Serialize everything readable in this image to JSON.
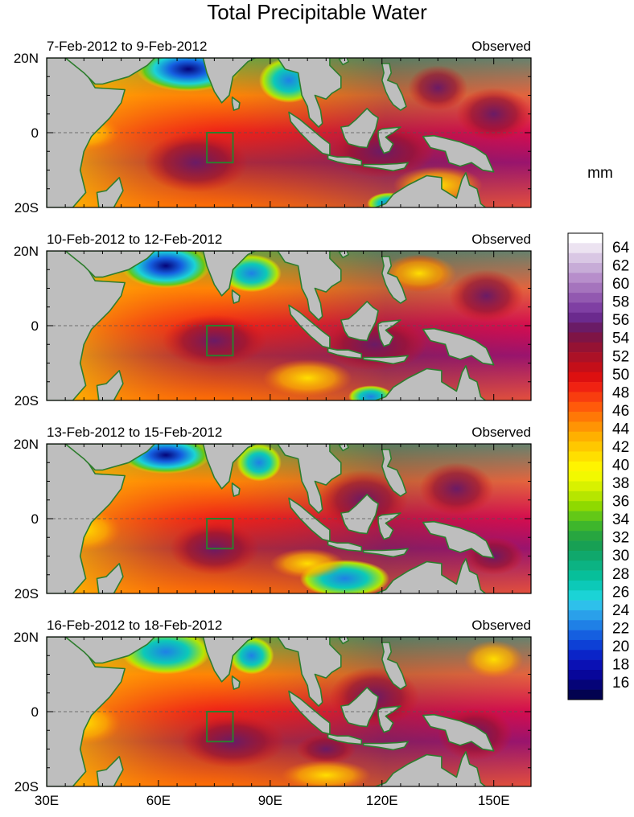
{
  "title": "Total Precipitable Water",
  "panels": [
    {
      "date_range": "7-Feb-2012 to 9-Feb-2012",
      "source": "Observed"
    },
    {
      "date_range": "10-Feb-2012 to 12-Feb-2012",
      "source": "Observed"
    },
    {
      "date_range": "13-Feb-2012 to 15-Feb-2012",
      "source": "Observed"
    },
    {
      "date_range": "16-Feb-2012 to 18-Feb-2012",
      "source": "Observed"
    }
  ],
  "lat_labels": [
    "20N",
    "0",
    "20S"
  ],
  "lon_labels": [
    "30E",
    "60E",
    "90E",
    "120E",
    "150E"
  ],
  "colorbar": {
    "unit": "mm",
    "labels": [
      "64",
      "62",
      "60",
      "58",
      "56",
      "54",
      "52",
      "50",
      "48",
      "46",
      "44",
      "42",
      "40",
      "38",
      "36",
      "34",
      "32",
      "30",
      "28",
      "26",
      "24",
      "22",
      "20",
      "18",
      "16"
    ],
    "colors_top_to_bottom": [
      "#ffffff",
      "#ece3f1",
      "#d9c7e4",
      "#c7acd7",
      "#b78ecb",
      "#a574bd",
      "#9259b0",
      "#7f3fa3",
      "#6b2a8e",
      "#6a1b66",
      "#7e1445",
      "#951233",
      "#ac1126",
      "#c40f19",
      "#dd1010",
      "#f02212",
      "#f83d0f",
      "#ff5a0a",
      "#ff7806",
      "#ff9404",
      "#ffb000",
      "#ffc800",
      "#ffdf00",
      "#fff400",
      "#f2f900",
      "#d8f100",
      "#b6e600",
      "#8fd900",
      "#63c817",
      "#3eb62c",
      "#27a640",
      "#18a054",
      "#10a86c",
      "#0cb383",
      "#07bf9a",
      "#0cc9b8",
      "#1bd3d6",
      "#2ec0eb",
      "#2aa0ea",
      "#1f80e6",
      "#155fe0",
      "#0d40d6",
      "#0a24c8",
      "#0a10b4",
      "#08069a",
      "#050478",
      "#020250"
    ]
  },
  "map_colors": {
    "land": "#bebebe",
    "coastline": "#2e7d2e",
    "box": "#2e7d2e"
  }
}
